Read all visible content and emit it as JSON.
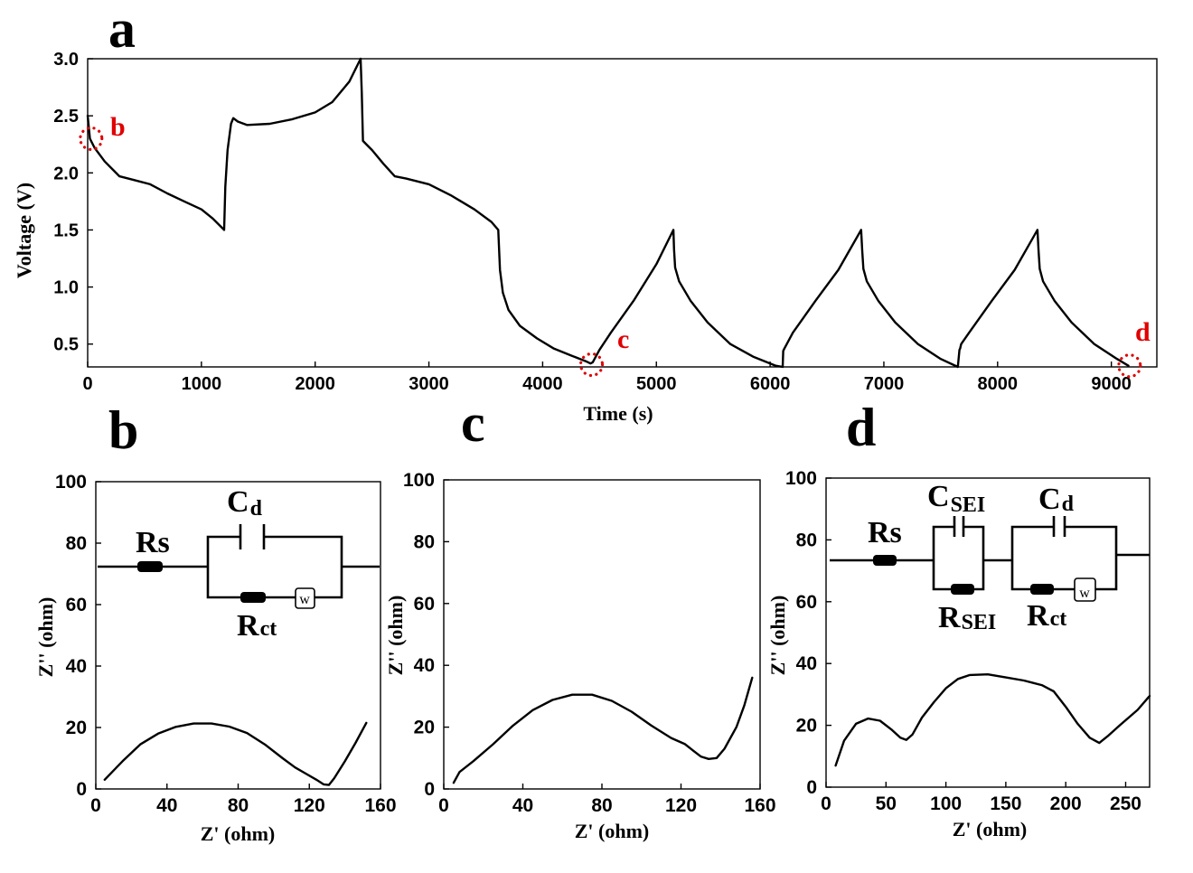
{
  "chart_data": [
    {
      "panel": "a",
      "type": "line",
      "xlabel": "Time (s)",
      "ylabel": "Voltage (V)",
      "xlim": [
        0,
        9400
      ],
      "ylim": [
        0.3,
        3.0
      ],
      "xticks": [
        0,
        1000,
        2000,
        3000,
        4000,
        5000,
        6000,
        7000,
        8000,
        9000
      ],
      "yticks": [
        0.5,
        1.0,
        1.5,
        2.0,
        2.5,
        3.0
      ],
      "ytick_labels": [
        "0.5",
        "1.0",
        "1.5",
        "2.0",
        "2.5",
        "3.0"
      ],
      "series": [
        {
          "x": [
            0,
            20,
            60,
            150,
            280,
            400,
            550,
            700,
            850,
            1000,
            1100,
            1200,
            1210,
            1230,
            1260,
            1280,
            1320,
            1400,
            1600,
            1800,
            2000,
            2150,
            2300,
            2400,
            2410,
            2420,
            2460,
            2500,
            2600,
            2700,
            2800,
            3000,
            3200,
            3400,
            3550,
            3610,
            3625,
            3650,
            3700,
            3800,
            3950,
            4100,
            4250,
            4380,
            4420,
            4440,
            4500,
            4600,
            4800,
            5000,
            5150,
            5155,
            5165,
            5200,
            5300,
            5450,
            5650,
            5850,
            6050,
            6110,
            6115,
            6125,
            6200,
            6400,
            6600,
            6800,
            6810,
            6820,
            6850,
            6950,
            7100,
            7300,
            7500,
            7650,
            7665,
            7670,
            7680,
            7750,
            7950,
            8150,
            8350,
            8360,
            8370,
            8400,
            8500,
            8650,
            8850,
            9050,
            9150
          ],
          "y": [
            2.5,
            2.3,
            2.22,
            2.1,
            1.97,
            1.94,
            1.9,
            1.82,
            1.75,
            1.68,
            1.6,
            1.5,
            1.88,
            2.2,
            2.43,
            2.48,
            2.45,
            2.42,
            2.43,
            2.47,
            2.53,
            2.62,
            2.8,
            3.0,
            2.7,
            2.28,
            2.24,
            2.2,
            2.08,
            1.97,
            1.95,
            1.9,
            1.8,
            1.68,
            1.57,
            1.5,
            1.15,
            0.95,
            0.8,
            0.66,
            0.55,
            0.46,
            0.4,
            0.35,
            0.33,
            0.34,
            0.45,
            0.6,
            0.88,
            1.2,
            1.5,
            1.33,
            1.17,
            1.05,
            0.88,
            0.69,
            0.5,
            0.39,
            0.31,
            0.3,
            0.44,
            0.46,
            0.6,
            0.88,
            1.15,
            1.5,
            1.32,
            1.16,
            1.05,
            0.88,
            0.69,
            0.5,
            0.37,
            0.3,
            0.45,
            0.46,
            0.5,
            0.6,
            0.88,
            1.15,
            1.5,
            1.32,
            1.16,
            1.05,
            0.88,
            0.69,
            0.5,
            0.37,
            0.31
          ]
        }
      ],
      "markers": [
        {
          "label": "b",
          "x": 30,
          "y": 2.3
        },
        {
          "label": "c",
          "x": 4430,
          "y": 0.32
        },
        {
          "label": "d",
          "x": 9160,
          "y": 0.31
        }
      ],
      "marker_color": "#e00000"
    },
    {
      "panel": "b",
      "type": "line",
      "xlabel": "Z' (ohm)",
      "ylabel": "Z'' (ohm)",
      "xlim": [
        0,
        160
      ],
      "ylim": [
        0,
        100
      ],
      "xticks": [
        0,
        40,
        80,
        120,
        160
      ],
      "yticks": [
        0,
        20,
        40,
        60,
        80,
        100
      ],
      "series": [
        {
          "x": [
            5,
            15,
            25,
            35,
            45,
            55,
            65,
            75,
            85,
            95,
            105,
            112,
            118,
            124,
            128,
            131,
            134,
            140,
            146,
            152
          ],
          "y": [
            3,
            9,
            14.5,
            18,
            20.2,
            21.3,
            21.3,
            20.3,
            18.2,
            14.5,
            10,
            7,
            5,
            3,
            1.5,
            1.3,
            3.5,
            9,
            15,
            21.5
          ]
        }
      ],
      "circuit": {
        "rs": "Rs",
        "cap": "C",
        "cap_sub": "d",
        "res": "R",
        "res_sub": "ct",
        "w": "w"
      }
    },
    {
      "panel": "c",
      "type": "line",
      "xlabel": "Z' (ohm)",
      "ylabel": "Z'' (ohm)",
      "xlim": [
        0,
        160
      ],
      "ylim": [
        0,
        100
      ],
      "xticks": [
        0,
        40,
        80,
        120,
        160
      ],
      "yticks": [
        0,
        20,
        40,
        60,
        80,
        100
      ],
      "series": [
        {
          "x": [
            5,
            8,
            15,
            25,
            35,
            45,
            55,
            65,
            75,
            85,
            95,
            105,
            115,
            122,
            126,
            130,
            134,
            138,
            142,
            148,
            152,
            156
          ],
          "y": [
            2,
            5.5,
            9,
            14.5,
            20.5,
            25.5,
            28.8,
            30.5,
            30.5,
            28.5,
            25,
            20.5,
            16.5,
            14.5,
            12.5,
            10.5,
            9.7,
            10,
            13,
            20,
            27,
            36
          ]
        }
      ]
    },
    {
      "panel": "d",
      "type": "line",
      "xlabel": "Z' (ohm)",
      "ylabel": "Z'' (ohm)",
      "xlim": [
        0,
        270
      ],
      "ylim": [
        0,
        100
      ],
      "xticks": [
        0,
        50,
        100,
        150,
        200,
        250
      ],
      "yticks": [
        0,
        20,
        40,
        60,
        80,
        100
      ],
      "series": [
        {
          "x": [
            8,
            15,
            25,
            35,
            45,
            55,
            62,
            67,
            72,
            80,
            90,
            100,
            110,
            120,
            135,
            150,
            165,
            180,
            190,
            200,
            210,
            220,
            228,
            235,
            245,
            260,
            270
          ],
          "y": [
            7,
            15,
            20.5,
            22.2,
            21.5,
            18.5,
            16,
            15.3,
            17,
            22.5,
            27.5,
            32,
            35,
            36.3,
            36.5,
            35.5,
            34.5,
            33,
            31,
            26,
            20.5,
            16,
            14.3,
            16.5,
            20,
            25,
            29.5
          ]
        }
      ],
      "circuit": {
        "rs": "Rs",
        "cap1": "C",
        "cap1_sub": "SEI",
        "res1": "R",
        "res1_sub": "SEI",
        "cap2": "C",
        "cap2_sub": "d",
        "res2": "R",
        "res2_sub": "ct",
        "w": "w"
      }
    }
  ]
}
